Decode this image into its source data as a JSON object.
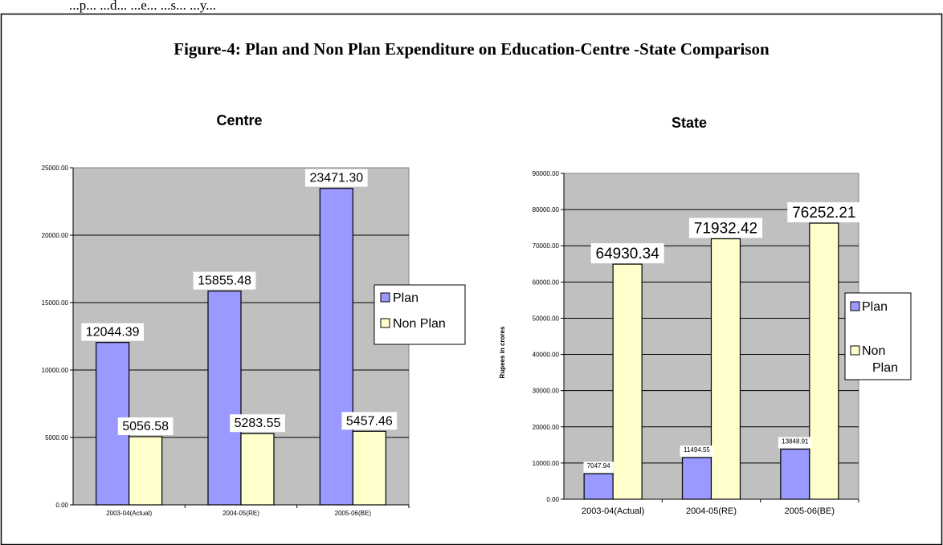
{
  "header_fragment": "...p... ...d... ...e... ...s... ...y...",
  "figure_title": "Figure-4: Plan and Non Plan Expenditure on Education-Centre -State Comparison",
  "colors": {
    "plan": "#9999ff",
    "non_plan": "#ffffcc",
    "plot_bg": "#c0c0c0"
  },
  "chart_data": [
    {
      "type": "bar",
      "title": "Centre",
      "categories": [
        "2003-04(Actual)",
        "2004-05(RE)",
        "2005-06(BE)"
      ],
      "series": [
        {
          "name": "Plan",
          "values": [
            12044.39,
            15855.48,
            23471.3
          ],
          "labels": [
            "12044.39",
            "15855.48",
            "23471.30"
          ]
        },
        {
          "name": "Non Plan",
          "values": [
            5056.58,
            5283.55,
            5457.46
          ],
          "labels": [
            "5056.58",
            "5283.55",
            "5457.46"
          ]
        }
      ],
      "ylim": [
        0,
        25000
      ],
      "yticks": [
        "0.00",
        "5000.00",
        "10000.00",
        "15000.00",
        "20000.00",
        "25000.00"
      ],
      "ylabel": "",
      "legend": [
        "Plan",
        "Non Plan"
      ],
      "legend_position": "right",
      "grid": true
    },
    {
      "type": "bar",
      "title": "State",
      "categories": [
        "2003-04(Actual)",
        "2004-05(RE)",
        "2005-06(BE)"
      ],
      "series": [
        {
          "name": "Plan",
          "values": [
            7047.94,
            11494.55,
            13848.91
          ],
          "labels": [
            "7047.94",
            "11494.55",
            "13848.91"
          ]
        },
        {
          "name": "Non Plan",
          "values": [
            64930.34,
            71932.42,
            76252.21
          ],
          "labels": [
            "64930.34",
            "71932.42",
            "76252.21"
          ]
        }
      ],
      "ylim": [
        0,
        90000
      ],
      "yticks": [
        "0.00",
        "10000.00",
        "20000.00",
        "30000.00",
        "40000.00",
        "50000.00",
        "60000.00",
        "70000.00",
        "80000.00",
        "90000.00"
      ],
      "ylabel": "Rupees in crores",
      "legend": [
        "Plan",
        "Non",
        "Plan"
      ],
      "legend_position": "right",
      "grid": true
    }
  ]
}
